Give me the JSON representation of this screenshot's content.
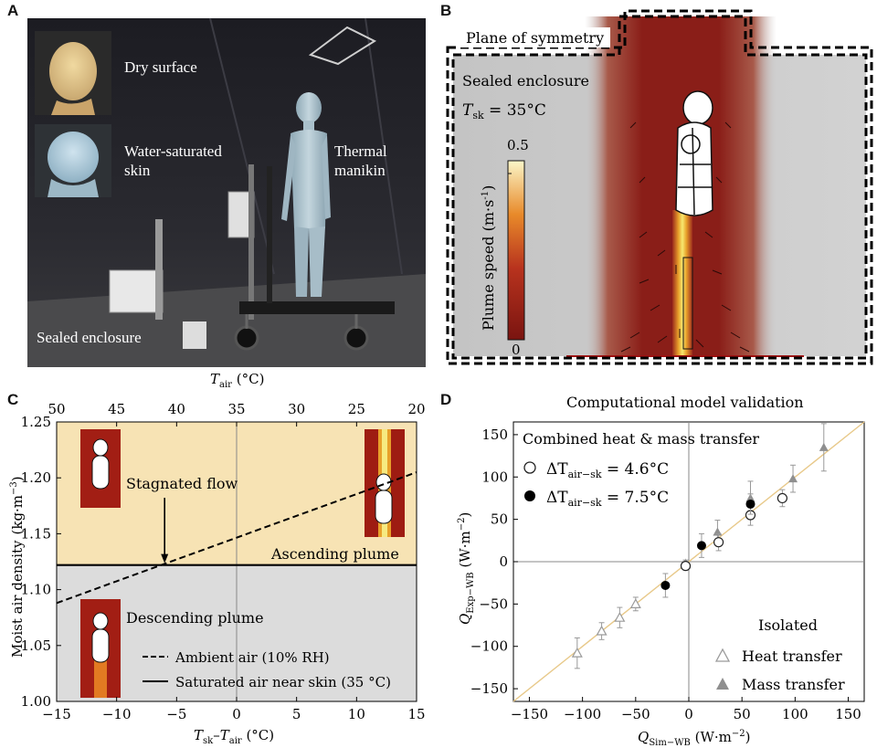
{
  "panels": {
    "a": {
      "letter": "A",
      "labels": {
        "dry_surface": "Dry surface",
        "water_saturated_1": "Water-saturated",
        "water_saturated_2": "skin",
        "thermal_manikin_1": "Thermal",
        "thermal_manikin_2": "manikin",
        "sealed_enclosure": "Sealed enclosure"
      }
    },
    "b": {
      "letter": "B",
      "plane_of_symmetry": "Plane of symmetry",
      "sealed_enclosure": "Sealed enclosure",
      "tsk_symbol": "T",
      "tsk_sub": "sk",
      "tsk_value": " = 35°C",
      "colorbar_label": "Plume speed (m·s",
      "colorbar_label_sup": "-1",
      "colorbar_label_end": ")",
      "colorbar_max": "0.5",
      "colorbar_min": "0"
    },
    "c": {
      "letter": "C",
      "top_axis_label": "T",
      "top_axis_sub": "air",
      "top_axis_unit": " (°C)",
      "bottom_axis_label_t1": "T",
      "bottom_axis_sub1": "sk",
      "bottom_axis_mid": "–",
      "bottom_axis_label_t2": "T",
      "bottom_axis_sub2": "air",
      "bottom_axis_unit": " (°C)",
      "ylabel": "Moist air density",
      "ylabel_unit": "(kg·m",
      "ylabel_unit_sup": "−3",
      "ylabel_unit_end": ")",
      "region_upper": "Ascending plume",
      "region_lower": "Descending plume",
      "annotation": "Stagnated flow",
      "legend_dashed": "Ambient air (10% RH)",
      "legend_solid": "Saturated air near skin (35 °C)"
    },
    "d": {
      "letter": "D",
      "title": "Computational model validation",
      "legend_title": "Combined heat & mass transfer",
      "legend_open_prefix": "ΔT",
      "legend_open_sub": "air−sk",
      "legend_open_value": " = 4.6°C",
      "legend_filled_prefix": "ΔT",
      "legend_filled_sub": "air−sk",
      "legend_filled_value": " = 7.5°C",
      "isolated_title": "Isolated",
      "isolated_heat": "Heat transfer",
      "isolated_mass": "Mass transfer",
      "xlabel": "Q",
      "xlabel_sub": "Sim−WB",
      "xlabel_unit": "  (W·m",
      "xlabel_unit_sup": "−2",
      "xlabel_unit_end": ")",
      "ylabel": "Q",
      "ylabel_sub": "Exp−WB",
      "ylabel_unit": "  (W·m",
      "ylabel_unit_sup": "−2",
      "ylabel_unit_end": ")"
    }
  },
  "chart_data": [
    {
      "type": "line",
      "panel": "C",
      "x": [
        -15,
        15
      ],
      "xlim": [
        -15,
        15
      ],
      "ylim": [
        1.0,
        1.25
      ],
      "x_ticks": [
        -15,
        -10,
        -5,
        0,
        5,
        10,
        15
      ],
      "y_ticks": [
        "1.00",
        "1.05",
        "1.10",
        "1.15",
        "1.20",
        "1.25"
      ],
      "top_ticks": [
        50,
        45,
        40,
        35,
        30,
        25,
        20
      ],
      "series": [
        {
          "name": "Ambient air (10% RH)",
          "style": "dashed",
          "x": [
            -15,
            15
          ],
          "y": [
            1.088,
            1.205
          ]
        },
        {
          "name": "Saturated air near skin (35 °C)",
          "style": "solid",
          "x": [
            -15,
            15
          ],
          "y": [
            1.122,
            1.122
          ]
        }
      ],
      "arrow_x": -6,
      "colors": {
        "upper": "#f7e3b4",
        "lower": "#dcdcdc"
      }
    },
    {
      "type": "scatter",
      "panel": "D",
      "xlim": [
        -165,
        165
      ],
      "ylim": [
        -165,
        165
      ],
      "x_ticks": [
        -150,
        -100,
        -50,
        0,
        50,
        100,
        150
      ],
      "y_ticks": [
        -150,
        -100,
        -50,
        0,
        50,
        100,
        150
      ],
      "series": [
        {
          "name": "Heat transfer",
          "marker": "open-triangle",
          "color": "#9a9a9a",
          "points": [
            [
              -105,
              -108,
              18
            ],
            [
              -82,
              -82,
              10
            ],
            [
              -65,
              -66,
              12
            ],
            [
              -50,
              -50,
              8
            ],
            [
              -3,
              -3,
              5
            ]
          ]
        },
        {
          "name": "Mass transfer",
          "marker": "filled-triangle",
          "color": "#8f8f8f",
          "points": [
            [
              27,
              35,
              14
            ],
            [
              58,
              75,
              20
            ],
            [
              98,
              98,
              16
            ],
            [
              127,
              135,
              28
            ]
          ]
        },
        {
          "name": "ΔTair−sk = 4.6°C",
          "marker": "open-circle",
          "color": "#222",
          "points": [
            [
              -3,
              -5,
              4
            ],
            [
              28,
              23,
              10
            ],
            [
              58,
              55,
              12
            ],
            [
              88,
              75,
              10
            ]
          ]
        },
        {
          "name": "ΔTair−sk = 7.5°C",
          "marker": "filled-circle",
          "color": "#000",
          "points": [
            [
              -22,
              -28,
              14
            ],
            [
              12,
              19,
              14
            ],
            [
              58,
              68,
              12
            ]
          ]
        }
      ]
    }
  ]
}
